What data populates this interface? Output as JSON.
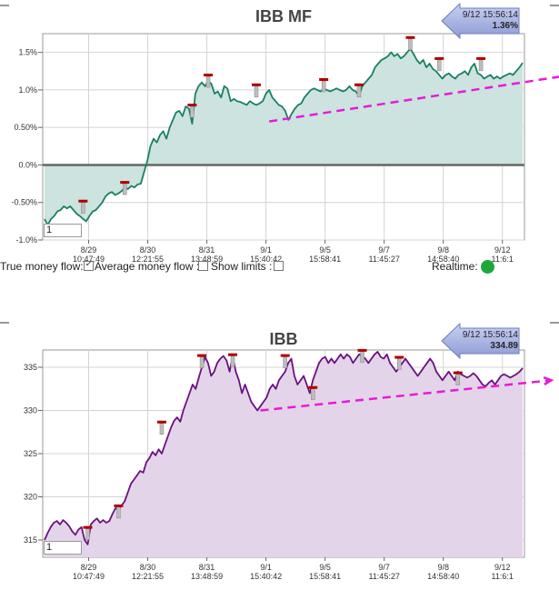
{
  "charts": {
    "mf": {
      "title": "IBB MF",
      "callout": {
        "time": "9/12 15:56:14",
        "value": "1.36%"
      },
      "period_input": "1",
      "fill": "#cce3df",
      "line": "#1a7f62"
    },
    "price": {
      "title": "IBB",
      "callout": {
        "time": "9/12 15:56:14",
        "value": "334.89"
      },
      "period_input": "1",
      "fill": "#e4d4ea",
      "line": "#6b1080"
    }
  },
  "controls": {
    "true_money_flow": "True money flow:",
    "average_money_flow": "Average money flow :",
    "show_limits": "Show limits :",
    "realtime": "Realtime:"
  },
  "colors": {
    "trend": "#e81ad6",
    "realtime_on": "#1ea83c",
    "marker": "#b00000"
  },
  "chart_data": [
    {
      "type": "line",
      "title": "IBB MF",
      "ylim": [
        -1.0,
        1.75
      ],
      "yticks": [
        -1.0,
        -0.5,
        0.0,
        0.5,
        1.0,
        1.5
      ],
      "ytick_labels": [
        "-1.0%",
        "-0.50%",
        "0.0%",
        "0.50%",
        "1.0%",
        "1.5%"
      ],
      "xticks": [
        {
          "date": "8/29",
          "time": "10:47:49"
        },
        {
          "date": "8/30",
          "time": "12:21:55"
        },
        {
          "date": "8/31",
          "time": "13:48:59"
        },
        {
          "date": "9/1",
          "time": "15:40:42"
        },
        {
          "date": "9/5",
          "time": "15:58:41"
        },
        {
          "date": "9/7",
          "time": "11:45:27"
        },
        {
          "date": "9/8",
          "time": "14:58:40"
        },
        {
          "date": "9/12",
          "time": "11:6:1"
        }
      ],
      "grid": true,
      "series": [
        {
          "values": [
            -0.72,
            -0.8,
            -0.72,
            -0.68,
            -0.62,
            -0.6,
            -0.55,
            -0.58,
            -0.55,
            -0.6,
            -0.65,
            -0.68,
            -0.72,
            -0.75,
            -0.68,
            -0.62,
            -0.6,
            -0.55,
            -0.5,
            -0.42,
            -0.38,
            -0.36,
            -0.4,
            -0.38,
            -0.35,
            -0.3,
            -0.32,
            -0.28,
            -0.3,
            -0.26,
            -0.25,
            -0.1,
            0.05,
            0.25,
            0.35,
            0.3,
            0.4,
            0.45,
            0.35,
            0.5,
            0.6,
            0.7,
            0.72,
            0.65,
            0.78,
            0.75,
            0.55,
            0.95,
            1.05,
            1.1,
            1.05,
            1.12,
            1.08,
            0.95,
            0.98,
            0.9,
            1.05,
            1.02,
            0.85,
            0.88,
            0.85,
            0.84,
            0.82,
            0.8,
            0.85,
            0.82,
            0.8,
            0.82,
            0.85,
            0.95,
            1.0,
            0.9,
            0.85,
            0.8,
            0.78,
            0.72,
            0.6,
            0.68,
            0.75,
            0.8,
            0.82,
            0.9,
            0.95,
            1.0,
            1.02,
            1.0,
            0.98,
            1.02,
            1.0,
            0.98,
            1.0,
            1.02,
            1.0,
            0.98,
            1.0,
            1.05,
            1.0,
            0.98,
            0.92,
            1.05,
            1.1,
            1.15,
            1.2,
            1.3,
            1.35,
            1.4,
            1.42,
            1.45,
            1.5,
            1.45,
            1.48,
            1.42,
            1.45,
            1.5,
            1.55,
            1.48,
            1.4,
            1.35,
            1.4,
            1.3,
            1.35,
            1.28,
            1.25,
            1.2,
            1.15,
            1.2,
            1.22,
            1.18,
            1.15,
            1.2,
            1.22,
            1.25,
            1.2,
            1.3,
            1.35,
            1.22,
            1.2,
            1.15,
            1.18,
            1.2,
            1.15,
            1.18,
            1.15,
            1.18,
            1.2,
            1.22,
            1.2,
            1.25,
            1.3,
            1.36
          ]
        }
      ],
      "markers": [
        {
          "i": 12,
          "v": -0.5
        },
        {
          "i": 25,
          "v": -0.25
        },
        {
          "i": 46,
          "v": 0.78
        },
        {
          "i": 51,
          "v": 1.18
        },
        {
          "i": 66,
          "v": 1.05
        },
        {
          "i": 87,
          "v": 1.12
        },
        {
          "i": 98,
          "v": 1.05
        },
        {
          "i": 114,
          "v": 1.68
        },
        {
          "i": 123,
          "v": 1.4
        },
        {
          "i": 136,
          "v": 1.4
        }
      ],
      "trendline": [
        {
          "i": 70,
          "v": 0.58
        },
        {
          "i": 159,
          "v": 1.2
        }
      ]
    },
    {
      "type": "line",
      "title": "IBB",
      "ylim": [
        313.0,
        337.0
      ],
      "yticks": [
        315,
        320,
        325,
        330,
        335
      ],
      "ytick_labels": [
        "315",
        "320",
        "325",
        "330",
        "335"
      ],
      "xticks": [
        {
          "date": "8/29",
          "time": "10:47:49"
        },
        {
          "date": "8/30",
          "time": "12:21:55"
        },
        {
          "date": "8/31",
          "time": "13:48:59"
        },
        {
          "date": "9/1",
          "time": "15:40:42"
        },
        {
          "date": "9/5",
          "time": "15:58:41"
        },
        {
          "date": "9/7",
          "time": "11:45:27"
        },
        {
          "date": "9/8",
          "time": "14:58:40"
        },
        {
          "date": "9/12",
          "time": "11:6:1"
        }
      ],
      "grid": true,
      "series": [
        {
          "values": [
            315.0,
            315.8,
            316.5,
            317.0,
            317.2,
            316.8,
            317.3,
            317.0,
            316.6,
            316.0,
            315.6,
            316.2,
            316.5,
            315.0,
            314.5,
            316.8,
            317.2,
            317.5,
            317.0,
            317.3,
            317.0,
            317.2,
            318.0,
            318.7,
            318.5,
            319.0,
            319.5,
            320.5,
            321.5,
            322.0,
            322.5,
            323.0,
            322.8,
            324.0,
            324.5,
            325.2,
            324.8,
            325.5,
            325.0,
            326.0,
            327.0,
            328.0,
            328.8,
            329.2,
            328.7,
            330.0,
            331.0,
            332.0,
            333.0,
            332.5,
            333.8,
            335.0,
            336.2,
            335.5,
            334.0,
            334.5,
            335.5,
            336.0,
            336.3,
            335.8,
            334.5,
            336.3,
            334.5,
            333.5,
            332.0,
            333.0,
            332.0,
            331.0,
            330.5,
            330.0,
            330.5,
            331.0,
            331.5,
            332.5,
            333.0,
            332.5,
            333.5,
            334.0,
            334.5,
            335.5,
            336.0,
            334.0,
            333.0,
            333.5,
            334.0,
            333.0,
            332.0,
            333.5,
            334.5,
            335.5,
            336.0,
            336.2,
            335.5,
            336.0,
            335.5,
            336.0,
            336.5,
            336.0,
            336.5,
            336.2,
            335.5,
            336.0,
            336.5,
            336.3,
            336.0,
            335.5,
            336.0,
            336.5,
            336.8,
            336.2,
            336.0,
            336.5,
            335.5,
            335.0,
            334.5,
            335.0,
            335.5,
            336.0,
            335.5,
            335.0,
            334.5,
            334.0,
            334.5,
            335.0,
            335.5,
            336.0,
            335.5,
            334.5,
            334.0,
            333.5,
            334.0,
            334.5,
            334.0,
            333.5,
            334.5,
            334.2,
            334.0,
            333.8,
            334.0,
            334.3,
            334.0,
            333.5,
            333.0,
            332.8,
            333.2,
            333.5,
            333.0,
            333.5,
            334.0,
            334.2,
            334.0,
            333.8,
            334.0,
            334.2,
            334.5,
            334.89
          ]
        }
      ],
      "markers": [
        {
          "i": 14,
          "v": 316.3
        },
        {
          "i": 24,
          "v": 318.8
        },
        {
          "i": 38,
          "v": 328.5
        },
        {
          "i": 51,
          "v": 336.2
        },
        {
          "i": 61,
          "v": 336.3
        },
        {
          "i": 78,
          "v": 336.2
        },
        {
          "i": 87,
          "v": 332.5
        },
        {
          "i": 103,
          "v": 336.8
        },
        {
          "i": 115,
          "v": 336.0
        },
        {
          "i": 134,
          "v": 334.2
        }
      ],
      "trendline": [
        {
          "i": 70,
          "v": 330.0
        },
        {
          "i": 159,
          "v": 333.5
        }
      ]
    }
  ]
}
